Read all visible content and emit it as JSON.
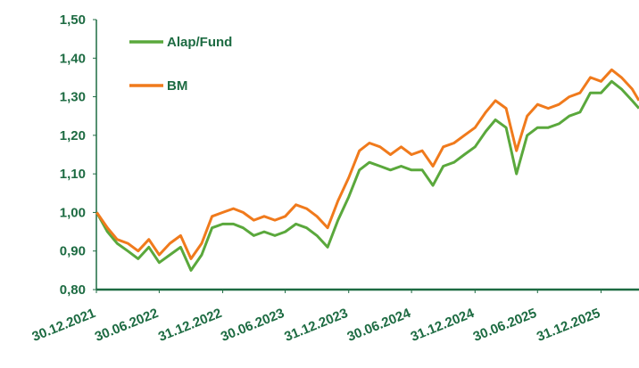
{
  "chart_data": {
    "type": "line",
    "x": [
      "31.12.2021",
      "31.01.2022",
      "28.02.2022",
      "31.03.2022",
      "30.04.2022",
      "31.05.2022",
      "30.06.2022",
      "31.07.2022",
      "31.08.2022",
      "30.09.2022",
      "31.10.2022",
      "30.11.2022",
      "31.12.2022",
      "31.01.2023",
      "28.02.2023",
      "31.03.2023",
      "30.04.2023",
      "31.05.2023",
      "30.06.2023",
      "31.07.2023",
      "31.08.2023",
      "30.09.2023",
      "31.10.2023",
      "30.11.2023",
      "31.12.2023",
      "31.01.2024",
      "29.02.2024",
      "31.03.2024",
      "30.04.2024",
      "31.05.2024",
      "30.06.2024",
      "31.07.2024",
      "31.08.2024",
      "30.09.2024",
      "31.10.2024",
      "30.11.2024",
      "31.12.2024",
      "31.01.2025",
      "28.02.2025",
      "31.03.2025",
      "30.04.2025",
      "31.05.2025",
      "30.06.2025",
      "31.07.2025",
      "31.08.2025",
      "30.09.2025",
      "31.10.2025",
      "30.11.2025",
      "31.12.2025",
      "31.01.2026",
      "28.02.2026",
      "31.03.2026",
      "20.04.2026"
    ],
    "series": [
      {
        "name": "Alap/Fund",
        "color": "#5aa83c",
        "values": [
          1.0,
          0.95,
          0.92,
          0.9,
          0.88,
          0.91,
          0.87,
          0.89,
          0.91,
          0.85,
          0.89,
          0.96,
          0.97,
          0.97,
          0.96,
          0.94,
          0.95,
          0.94,
          0.95,
          0.97,
          0.96,
          0.94,
          0.91,
          0.98,
          1.04,
          1.11,
          1.13,
          1.12,
          1.11,
          1.12,
          1.11,
          1.11,
          1.07,
          1.12,
          1.13,
          1.15,
          1.17,
          1.21,
          1.24,
          1.22,
          1.1,
          1.2,
          1.22,
          1.22,
          1.23,
          1.25,
          1.26,
          1.31,
          1.31,
          1.34,
          1.32,
          1.29,
          1.27
        ]
      },
      {
        "name": "BM",
        "color": "#f07a1c",
        "values": [
          1.0,
          0.96,
          0.93,
          0.92,
          0.9,
          0.93,
          0.89,
          0.92,
          0.94,
          0.88,
          0.92,
          0.99,
          1.0,
          1.01,
          1.0,
          0.98,
          0.99,
          0.98,
          0.99,
          1.02,
          1.01,
          0.99,
          0.96,
          1.03,
          1.09,
          1.16,
          1.18,
          1.17,
          1.15,
          1.17,
          1.15,
          1.16,
          1.12,
          1.17,
          1.18,
          1.2,
          1.22,
          1.26,
          1.29,
          1.27,
          1.16,
          1.25,
          1.28,
          1.27,
          1.28,
          1.3,
          1.31,
          1.35,
          1.34,
          1.37,
          1.35,
          1.32,
          1.29
        ]
      }
    ],
    "xlim": [
      "30.12.2021",
      "20.04.2026"
    ],
    "xticks": [
      "30.12.2021",
      "30.06.2022",
      "31.12.2022",
      "30.06.2023",
      "31.12.2023",
      "30.06.2024",
      "31.12.2024",
      "30.06.2025",
      "31.12.2025"
    ],
    "ylim": [
      0.8,
      1.5
    ],
    "yticks": [
      {
        "value": 0.8,
        "label": "0,80"
      },
      {
        "value": 0.9,
        "label": "0,90"
      },
      {
        "value": 1.0,
        "label": "1,00"
      },
      {
        "value": 1.1,
        "label": "1,10"
      },
      {
        "value": 1.2,
        "label": "1,20"
      },
      {
        "value": 1.3,
        "label": "1,30"
      },
      {
        "value": 1.4,
        "label": "1,40"
      },
      {
        "value": 1.5,
        "label": "1,50"
      }
    ],
    "legend": "upper left"
  }
}
